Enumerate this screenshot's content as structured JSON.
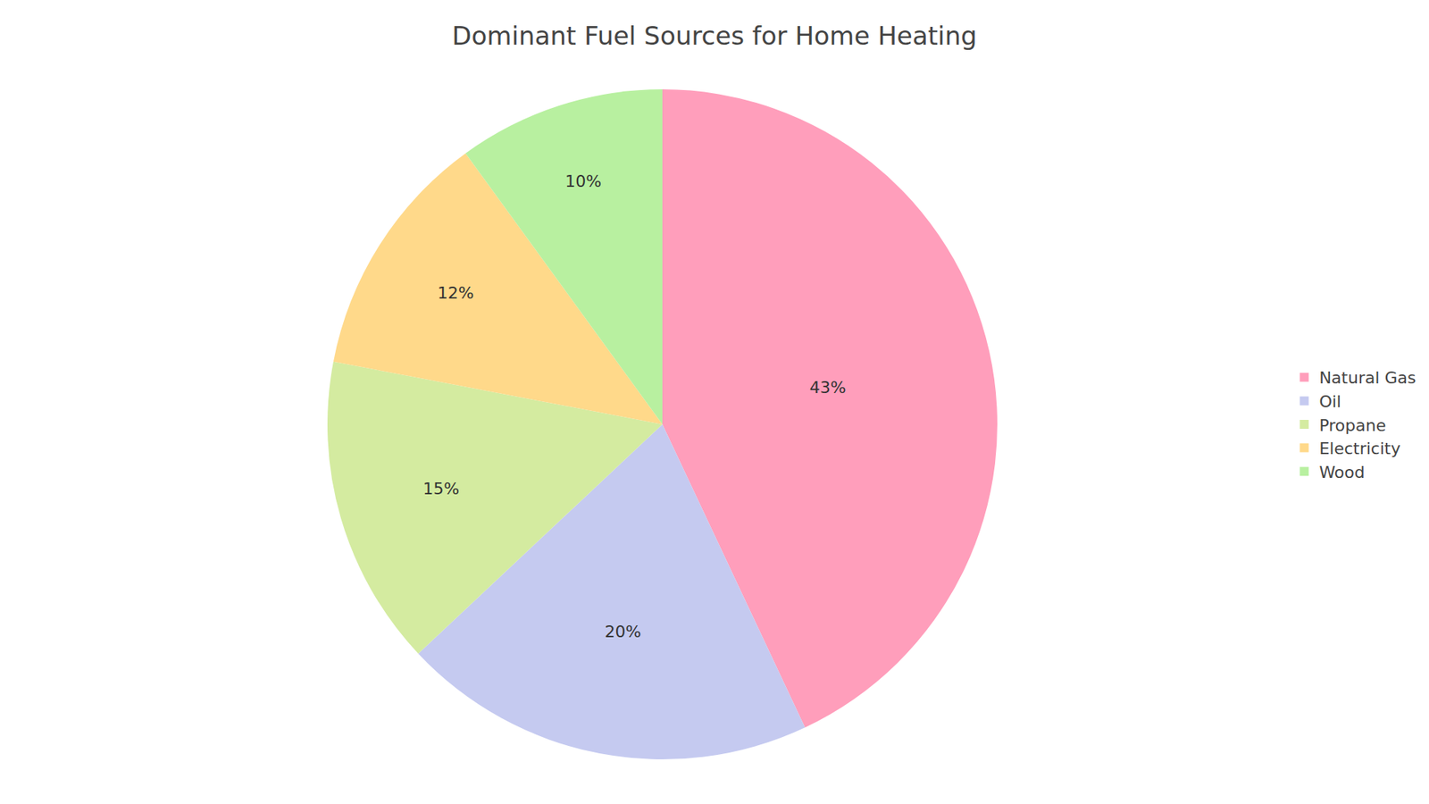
{
  "chart_data": {
    "type": "pie",
    "title": "Dominant Fuel Sources for Home Heating",
    "categories": [
      "Natural Gas",
      "Oil",
      "Propane",
      "Electricity",
      "Wood"
    ],
    "values": [
      43,
      20,
      15,
      12,
      10
    ],
    "value_labels": [
      "43%",
      "20%",
      "15%",
      "12%",
      "10%"
    ],
    "colors": [
      "#FF9EBB",
      "#C5CAF0",
      "#D4EBA0",
      "#FFD98A",
      "#B8F0A0"
    ],
    "data_labels": true,
    "legend": "right"
  }
}
